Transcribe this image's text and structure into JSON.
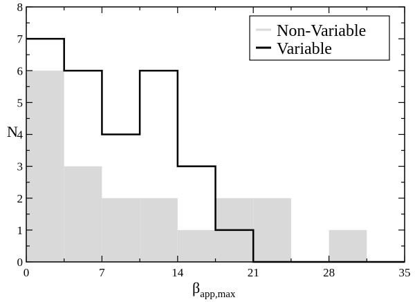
{
  "chart_data": {
    "type": "histogram",
    "xlabel": "β",
    "xlabel_subscript": "app,max",
    "ylabel": "N",
    "xlim": [
      0,
      35
    ],
    "ylim": [
      0,
      8
    ],
    "x_ticks": [
      0,
      7,
      14,
      21,
      28,
      35
    ],
    "y_ticks": [
      0,
      1,
      2,
      3,
      4,
      5,
      6,
      7,
      8
    ],
    "bin_edges": [
      0,
      3.5,
      7,
      10.5,
      14,
      17.5,
      21,
      24.5,
      28,
      31.5,
      35
    ],
    "series": [
      {
        "name": "Non-Variable",
        "style": "filled",
        "color": "#d9d9d9",
        "values": [
          6,
          3,
          2,
          2,
          1,
          2,
          2,
          0,
          1,
          0
        ]
      },
      {
        "name": "Variable",
        "style": "step",
        "color": "#000000",
        "values": [
          7,
          6,
          4,
          6,
          3,
          1,
          0,
          0,
          0,
          0
        ]
      }
    ],
    "grid": false,
    "legend_position": "top-right"
  }
}
